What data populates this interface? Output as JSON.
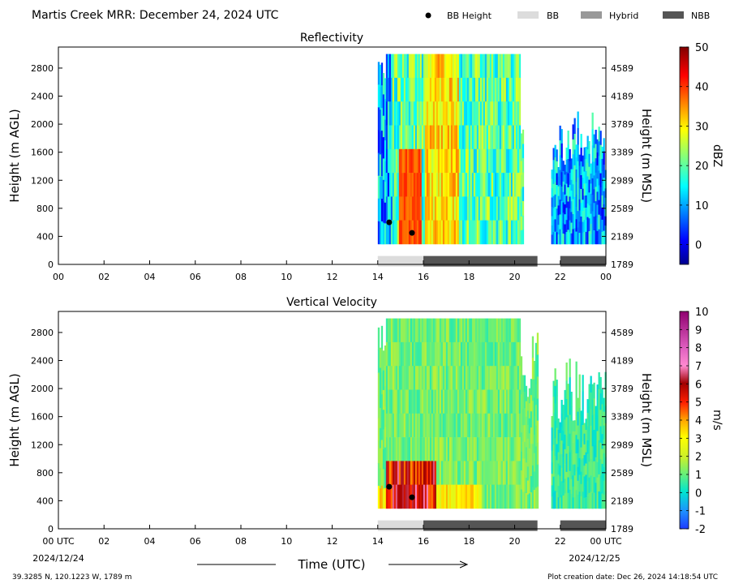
{
  "header": {
    "title": "Martis Creek MRR:  December 24, 2024 UTC",
    "legend": [
      {
        "label": "BB Height",
        "marker": "dot",
        "color": "#000000"
      },
      {
        "label": "BB",
        "marker": "bar",
        "color": "#dcdcdc"
      },
      {
        "label": "Hybrid",
        "marker": "bar",
        "color": "#999999"
      },
      {
        "label": "NBB",
        "marker": "bar",
        "color": "#555555"
      }
    ]
  },
  "footer": {
    "location": "39.3285 N, 120.1223 W, 1789 m",
    "creation_date": "Plot creation date: Dec 26, 2024 14:18:54 UTC",
    "xlabel": "Time (UTC)",
    "start_date": "2024/12/24",
    "end_date": "2024/12/25"
  },
  "chart_data": [
    {
      "type": "heatmap",
      "title": "Reflectivity",
      "xlabel": "",
      "ylabel": "Height (m AGL)",
      "ylabel_right": "Height (m MSL)",
      "x_ticks": [
        "00",
        "02",
        "04",
        "06",
        "08",
        "10",
        "12",
        "14",
        "16",
        "18",
        "20",
        "22",
        "00"
      ],
      "xlim": [
        0,
        24
      ],
      "ylim": [
        0,
        3100
      ],
      "y_ticks": [
        0,
        400,
        800,
        1200,
        1600,
        2000,
        2400,
        2800
      ],
      "y_ticks_right": [
        "1789",
        "2189",
        "2589",
        "2989",
        "3389",
        "3789",
        "4189",
        "4589"
      ],
      "colorbar": {
        "label": "dBZ",
        "range": [
          -5,
          50
        ],
        "ticks": [
          0,
          10,
          20,
          30,
          40,
          50
        ],
        "scheme": "jet"
      },
      "data_extent": [
        {
          "x0": 14.0,
          "x1": 20.4,
          "y0": 290,
          "y1": 3000
        },
        {
          "x0": 21.6,
          "x1": 24.0,
          "y0": 290,
          "y1": 2200
        }
      ],
      "bb_height": [
        {
          "x": 14.5,
          "y": 600
        },
        {
          "x": 15.5,
          "y": 450
        }
      ],
      "bb_type_bars": [
        {
          "type": "BB",
          "x0": 14.0,
          "x1": 16.0
        },
        {
          "type": "NBB",
          "x0": 16.0,
          "x1": 21.0
        },
        {
          "type": "NBB",
          "x0": 22.0,
          "x1": 24.0
        }
      ]
    },
    {
      "type": "heatmap",
      "title": "Vertical Velocity",
      "xlabel": "Time (UTC)",
      "ylabel": "Height (m AGL)",
      "ylabel_right": "Height (m MSL)",
      "x_ticks": [
        "00 UTC",
        "02",
        "04",
        "06",
        "08",
        "10",
        "12",
        "14",
        "16",
        "18",
        "20",
        "22",
        "00 UTC"
      ],
      "xlim": [
        0,
        24
      ],
      "ylim": [
        0,
        3100
      ],
      "y_ticks": [
        0,
        400,
        800,
        1200,
        1600,
        2000,
        2400,
        2800
      ],
      "y_ticks_right": [
        "1789",
        "2189",
        "2589",
        "2989",
        "3389",
        "3789",
        "4189",
        "4589"
      ],
      "colorbar": {
        "label": "m/s",
        "range": [
          -2,
          10
        ],
        "ticks": [
          -2,
          -1,
          0,
          1,
          2,
          3,
          4,
          5,
          6,
          7,
          8,
          9,
          10
        ],
        "scheme": "velocity"
      },
      "data_extent": [
        {
          "x0": 14.0,
          "x1": 21.0,
          "y0": 290,
          "y1": 3000
        },
        {
          "x0": 21.6,
          "x1": 24.0,
          "y0": 290,
          "y1": 2500
        }
      ],
      "bb_height": [
        {
          "x": 14.5,
          "y": 600
        },
        {
          "x": 15.5,
          "y": 450
        }
      ],
      "bb_type_bars": [
        {
          "type": "BB",
          "x0": 14.0,
          "x1": 16.0
        },
        {
          "type": "NBB",
          "x0": 16.0,
          "x1": 21.0
        },
        {
          "type": "NBB",
          "x0": 22.0,
          "x1": 24.0
        }
      ]
    }
  ]
}
